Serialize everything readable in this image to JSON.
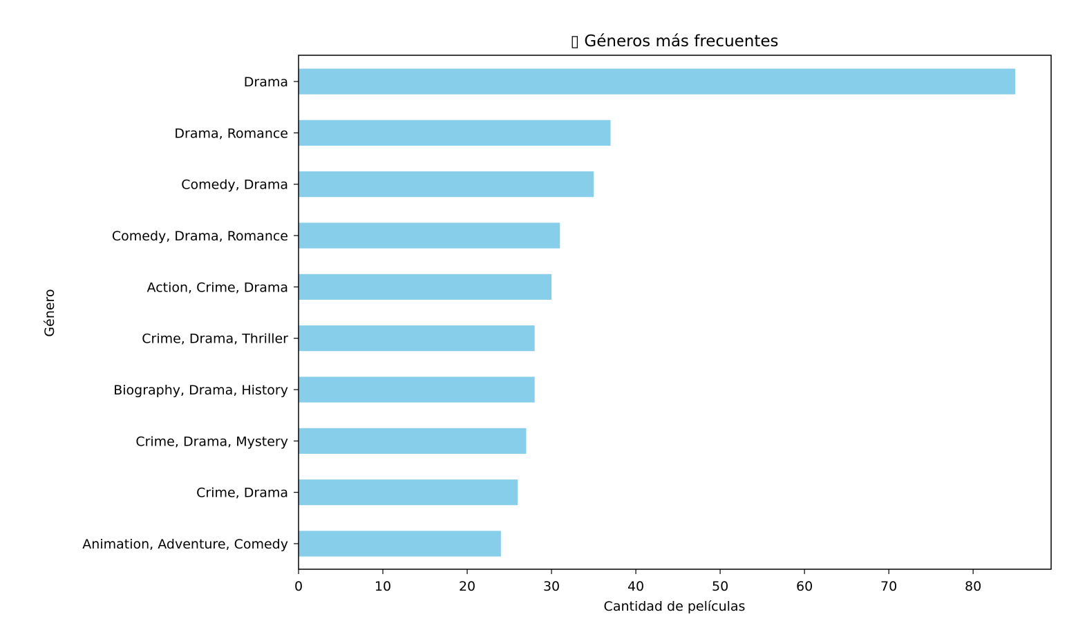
{
  "chart_data": {
    "type": "bar",
    "orientation": "horizontal",
    "title": "▯ Géneros más frecuentes",
    "xlabel": "Cantidad de películas",
    "ylabel": "Género",
    "categories": [
      "Drama",
      "Drama, Romance",
      "Comedy, Drama",
      "Comedy, Drama, Romance",
      "Action, Crime, Drama",
      "Crime, Drama, Thriller",
      "Biography, Drama, History",
      "Crime, Drama, Mystery",
      "Crime, Drama",
      "Animation, Adventure, Comedy"
    ],
    "values": [
      85,
      37,
      35,
      31,
      30,
      28,
      28,
      27,
      26,
      24
    ],
    "xlim": [
      0,
      89.25
    ],
    "xticks": [
      0,
      10,
      20,
      30,
      40,
      50,
      60,
      70,
      80
    ],
    "grid": false,
    "bar_color": "#87ceeb"
  }
}
